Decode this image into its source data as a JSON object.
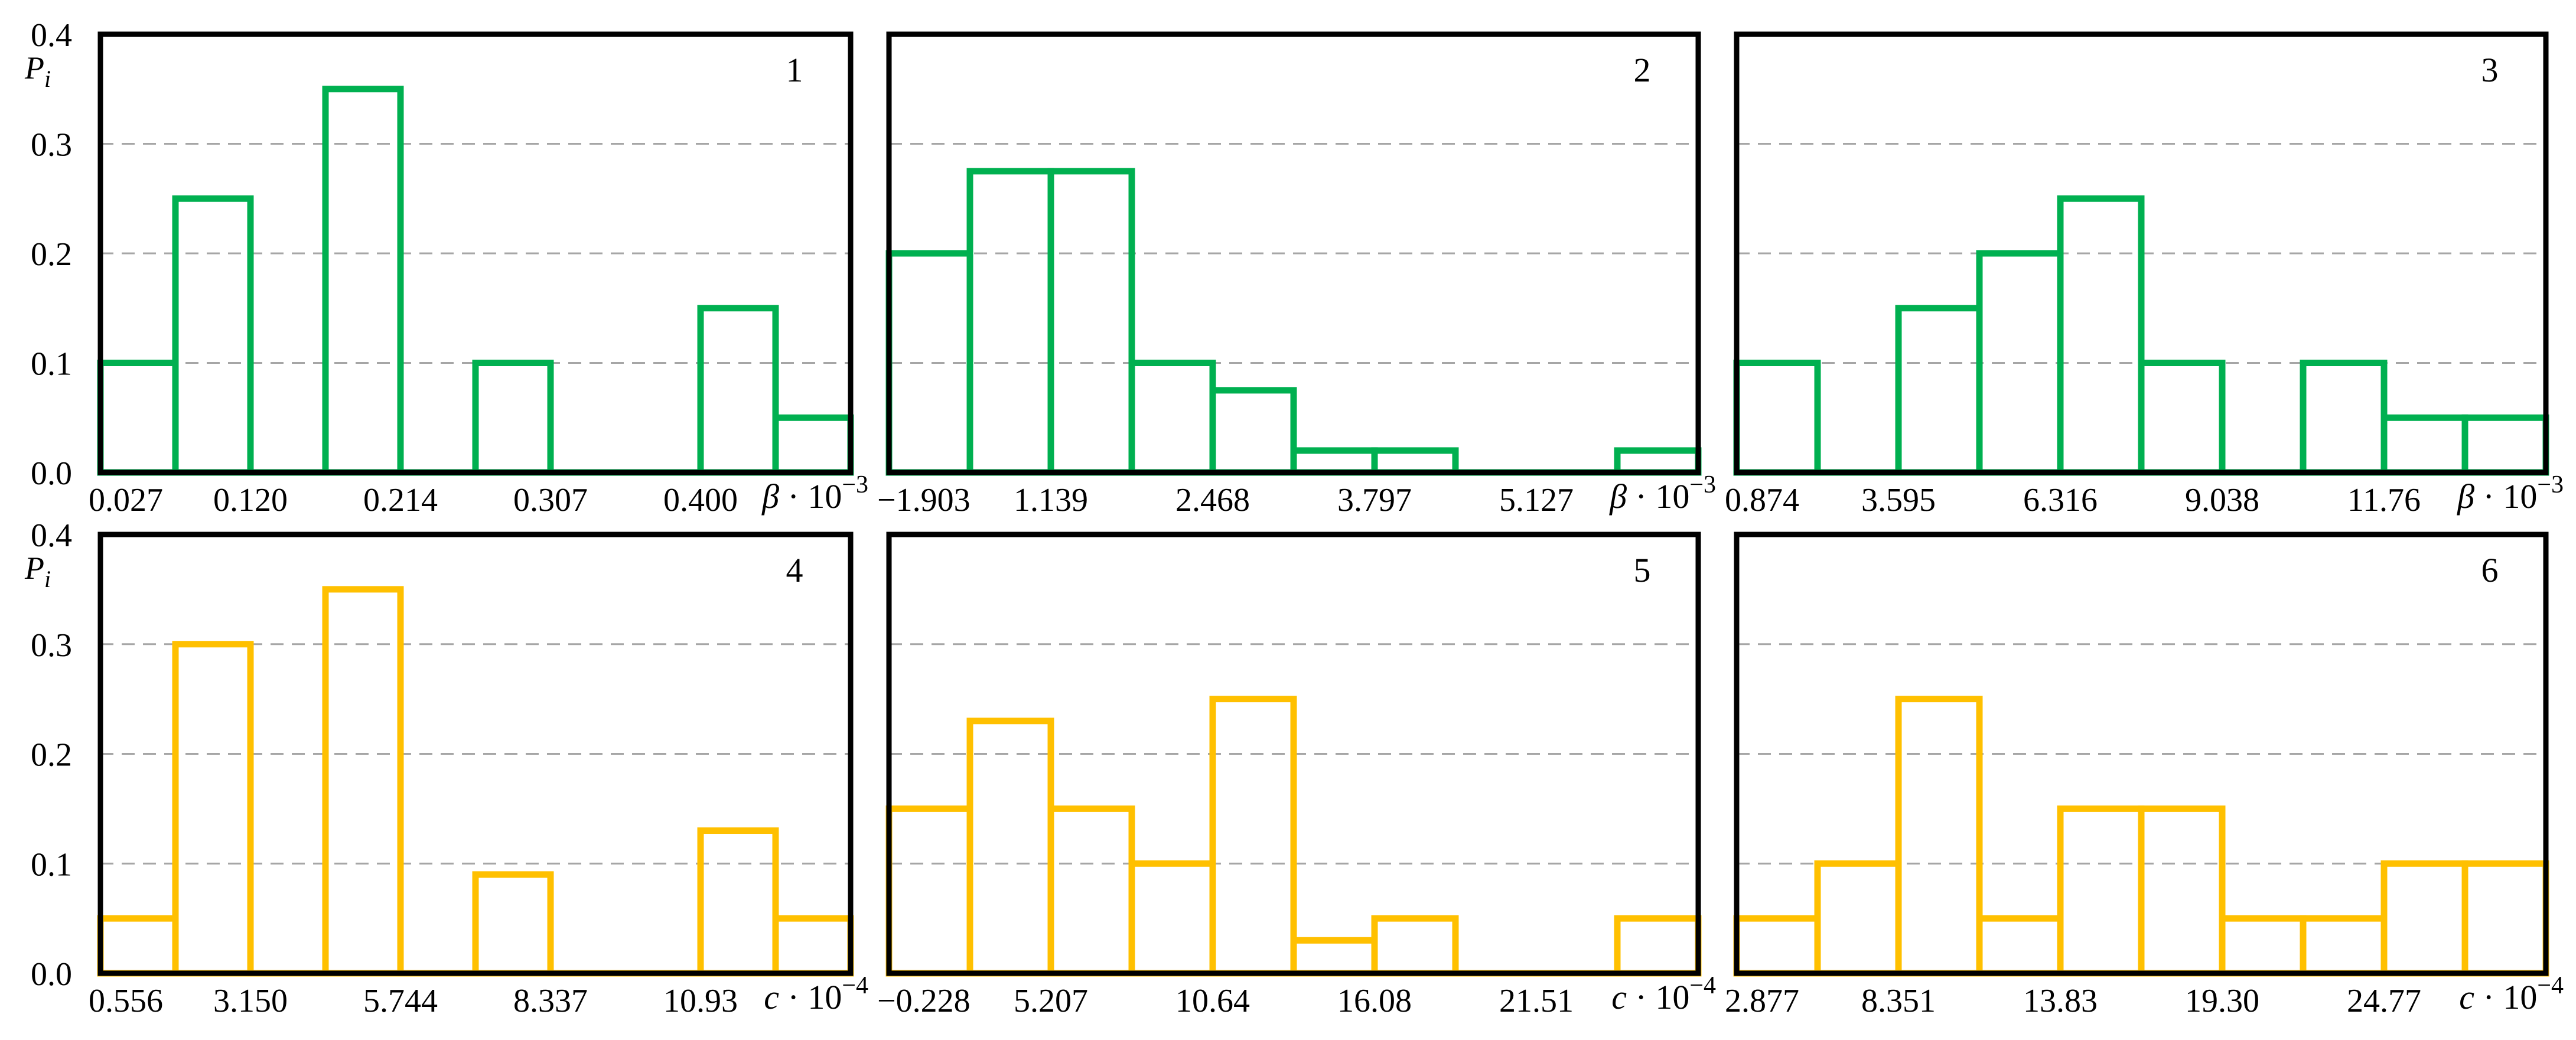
{
  "colors": {
    "beta": "#00b050",
    "c": "#ffc000",
    "grid": "#a6a6a6",
    "frame": "#000000"
  },
  "y_axis": {
    "label": "P",
    "label_subscript": "i",
    "ylim": [
      0,
      0.4
    ],
    "ticks": [
      "0.0",
      "0.1",
      "0.2",
      "0.3",
      "0.4"
    ]
  },
  "chart_data": [
    {
      "type": "bar",
      "panel": "1",
      "row": 0,
      "color_key": "beta",
      "xlabel": "β · 10⁻³",
      "xlabel_symbol": "β",
      "xlabel_scale": "10",
      "xlabel_exp": "−3",
      "tick_labels": [
        "0.027",
        "0.120",
        "0.214",
        "0.307",
        "0.400"
      ],
      "values": [
        0.1,
        0.25,
        0.0,
        0.35,
        0.0,
        0.1,
        0.0,
        0.0,
        0.15,
        0.05
      ],
      "ylim": [
        0,
        0.4
      ],
      "grid": true
    },
    {
      "type": "bar",
      "panel": "2",
      "row": 0,
      "color_key": "beta",
      "xlabel": "β · 10⁻³",
      "xlabel_symbol": "β",
      "xlabel_scale": "10",
      "xlabel_exp": "−3",
      "tick_labels": [
        "−1.903",
        "1.139",
        "2.468",
        "3.797",
        "5.127"
      ],
      "values": [
        0.2,
        0.275,
        0.275,
        0.1,
        0.075,
        0.02,
        0.02,
        0.0,
        0.0,
        0.02
      ],
      "ylim": [
        0,
        0.4
      ],
      "grid": true
    },
    {
      "type": "bar",
      "panel": "3",
      "row": 0,
      "color_key": "beta",
      "xlabel": "β · 10⁻³",
      "xlabel_symbol": "β",
      "xlabel_scale": "10",
      "xlabel_exp": "−3",
      "tick_labels": [
        "0.874",
        "3.595",
        "6.316",
        "9.038",
        "11.76"
      ],
      "values": [
        0.1,
        0.0,
        0.15,
        0.2,
        0.25,
        0.1,
        0.0,
        0.1,
        0.05,
        0.05
      ],
      "ylim": [
        0,
        0.4
      ],
      "grid": true
    },
    {
      "type": "bar",
      "panel": "4",
      "row": 1,
      "color_key": "c",
      "xlabel": "c · 10⁻⁴",
      "xlabel_symbol": "c",
      "xlabel_scale": "10",
      "xlabel_exp": "−4",
      "tick_labels": [
        "0.556",
        "3.150",
        "5.744",
        "8.337",
        "10.93"
      ],
      "values": [
        0.05,
        0.3,
        0.0,
        0.35,
        0.0,
        0.09,
        0.0,
        0.0,
        0.13,
        0.05
      ],
      "ylim": [
        0,
        0.4
      ],
      "grid": true
    },
    {
      "type": "bar",
      "panel": "5",
      "row": 1,
      "color_key": "c",
      "xlabel": "c · 10⁻⁴",
      "xlabel_symbol": "c",
      "xlabel_scale": "10",
      "xlabel_exp": "−4",
      "tick_labels": [
        "−0.228",
        "5.207",
        "10.64",
        "16.08",
        "21.51"
      ],
      "values": [
        0.15,
        0.23,
        0.15,
        0.1,
        0.25,
        0.03,
        0.05,
        0.0,
        0.0,
        0.05
      ],
      "ylim": [
        0,
        0.4
      ],
      "grid": true
    },
    {
      "type": "bar",
      "panel": "6",
      "row": 1,
      "color_key": "c",
      "xlabel": "c · 10⁻⁴",
      "xlabel_symbol": "c",
      "xlabel_scale": "10",
      "xlabel_exp": "−4",
      "tick_labels": [
        "2.877",
        "8.351",
        "13.83",
        "19.30",
        "24.77"
      ],
      "values": [
        0.05,
        0.1,
        0.25,
        0.05,
        0.15,
        0.15,
        0.05,
        0.05,
        0.1,
        0.1
      ],
      "ylim": [
        0,
        0.4
      ],
      "grid": true
    }
  ]
}
